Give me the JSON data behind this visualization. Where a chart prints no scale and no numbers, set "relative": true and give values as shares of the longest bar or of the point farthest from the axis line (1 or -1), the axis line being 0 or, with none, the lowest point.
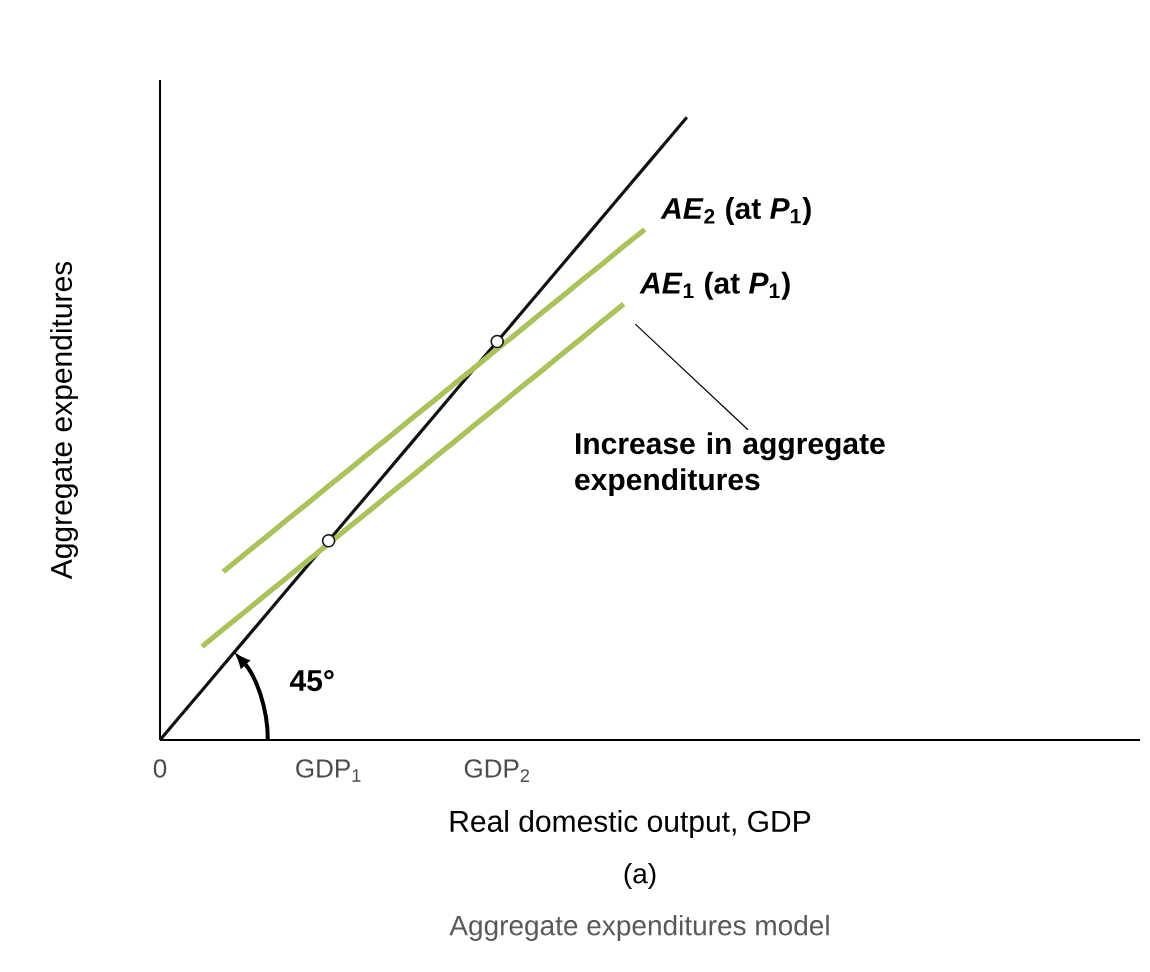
{
  "chart_data": {
    "type": "line",
    "relative": true,
    "xlabel": "Real domestic output, GDP",
    "ylabel": "Aggregate expenditures",
    "categories": [
      "0",
      null,
      null,
      null,
      null,
      null,
      null,
      null,
      "GDP$_{1}$",
      null,
      null,
      null,
      null,
      null,
      null,
      null,
      "GDP$_{2}$",
      null,
      null,
      null,
      null,
      null,
      null,
      null,
      null,
      null
    ],
    "series": [
      {
        "values": [
          0,
          0.04,
          0.08,
          0.12,
          0.16,
          0.2,
          0.24,
          0.28,
          0.32,
          0.36,
          0.4,
          0.44,
          0.48,
          0.52,
          0.56,
          0.6,
          0.64,
          0.68,
          0.72,
          0.76,
          0.8,
          0.84,
          0.88,
          0.92,
          0.96,
          1
        ],
        "color": "#111111"
      },
      {
        "name": "*AE*$_{2}$ (at *P*$_{1}$)",
        "values": [
          null,
          null,
          null,
          0.27,
          0.298,
          0.325,
          0.353,
          0.38,
          0.408,
          0.435,
          0.463,
          0.49,
          0.518,
          0.545,
          0.573,
          0.6,
          0.628,
          0.655,
          0.683,
          0.71,
          0.738,
          0.765,
          0.793,
          0.82,
          null,
          null
        ],
        "color": "#a9c25a"
      },
      {
        "name": "*AE*$_{1}$ (at *P*$_{1}$)",
        "values": [
          null,
          null,
          0.15,
          0.178,
          0.205,
          0.233,
          0.26,
          0.288,
          0.315,
          0.343,
          0.37,
          0.398,
          0.425,
          0.453,
          0.48,
          0.508,
          0.535,
          0.563,
          0.59,
          0.618,
          0.645,
          0.673,
          0.7,
          null,
          null,
          null
        ],
        "color": "#a9c25a"
      },
      {
        "type": "scatter",
        "marker": "circle",
        "values": [
          null,
          null,
          null,
          null,
          null,
          null,
          null,
          null,
          0.32,
          null,
          null,
          null,
          null,
          null,
          null,
          null,
          0.64,
          null,
          null,
          null,
          null,
          null,
          null,
          null,
          null,
          null
        ],
        "color": "#111111"
      }
    ],
    "annotations": [
      "45°",
      "Increase in aggregate expenditures",
      "(a)",
      "Aggregate expenditures model"
    ]
  }
}
